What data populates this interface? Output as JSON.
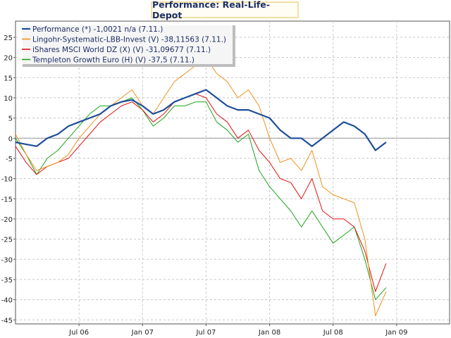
{
  "chart_data": {
    "type": "line",
    "title": "Performance: Real-Life-Depot",
    "xlabel": "",
    "ylabel": "",
    "x_range": [
      0,
      41
    ],
    "ylim": [
      -46,
      29
    ],
    "y_ticks": [
      25,
      20,
      15,
      10,
      5,
      0,
      -5,
      -10,
      -15,
      -20,
      -25,
      -30,
      -35,
      -40,
      -45
    ],
    "x_ticks": [
      {
        "label": "Jul 06",
        "x": 6
      },
      {
        "label": "Jan 07",
        "x": 12
      },
      {
        "label": "Jul 07",
        "x": 18
      },
      {
        "label": "Jan 08",
        "x": 24
      },
      {
        "label": "Jul 08",
        "x": 30
      },
      {
        "label": "Jan 09",
        "x": 36
      }
    ],
    "grid": true,
    "legend_position": "top-left",
    "x": [
      0,
      1,
      2,
      3,
      4,
      5,
      6,
      7,
      8,
      9,
      10,
      11,
      12,
      13,
      14,
      15,
      16,
      17,
      18,
      19,
      20,
      21,
      22,
      23,
      24,
      25,
      26,
      27,
      28,
      29,
      30,
      31,
      32,
      33,
      34,
      35
    ],
    "series": [
      {
        "name": "Performance (*) -1,0021 n/a (7.11.)",
        "color": "#1f4e9a",
        "width": 2.2,
        "values": [
          -1,
          -1.5,
          -2,
          0,
          1,
          3,
          4,
          5,
          6,
          8,
          9,
          9.5,
          8,
          6,
          7,
          9,
          10,
          11,
          12,
          10,
          8,
          7,
          7,
          6,
          5,
          2,
          0,
          0,
          -2,
          0,
          2,
          4,
          3,
          1,
          -3,
          -1
        ]
      },
      {
        "name": "Lingohr-Systematic-LBB-Invest (V) -38,11563 (7.11.)",
        "color": "#f0901c",
        "width": 1,
        "values": [
          1,
          -4,
          -8,
          -7,
          -6,
          -4,
          0,
          3,
          6,
          8,
          10,
          12,
          8,
          6,
          10,
          14,
          16,
          18,
          20,
          16,
          14,
          10,
          12,
          8,
          0,
          -6,
          -5,
          -8,
          -3,
          -12,
          -14,
          -15,
          -16,
          -25,
          -44,
          -38
        ]
      },
      {
        "name": "iShares MSCI World DZ (X) (V) -31,09677 (7.11.)",
        "color": "#e01010",
        "width": 1,
        "values": [
          -2,
          -6,
          -9,
          -7,
          -6,
          -5,
          -2,
          1,
          4,
          6,
          8,
          9,
          7,
          4,
          6,
          9,
          10,
          11,
          10,
          6,
          4,
          0,
          2,
          -3,
          -6,
          -10,
          -11,
          -15,
          -10,
          -18,
          -20,
          -20,
          -22,
          -28,
          -38,
          -31
        ]
      },
      {
        "name": "Templeton Growth Euro (H) (V) -37,5 (7.11.)",
        "color": "#1aa41a",
        "width": 1,
        "values": [
          0,
          -4,
          -9,
          -5,
          -3,
          0,
          3,
          6,
          8,
          8,
          9,
          10,
          7,
          3,
          5,
          8,
          8,
          9,
          9,
          4,
          2,
          -1,
          1,
          -8,
          -12,
          -15,
          -18,
          -22,
          -18,
          -22,
          -26,
          -24,
          -22,
          -30,
          -40,
          -37
        ]
      }
    ]
  }
}
